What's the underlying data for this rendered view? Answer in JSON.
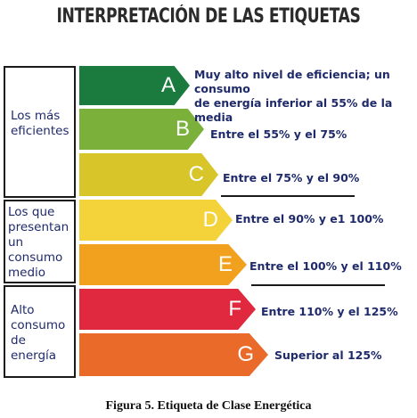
{
  "title": "INTERPRETACIÓN DE LAS ETIQUETAS",
  "groups": [
    {
      "label": "Los más\neficientes"
    },
    {
      "label": "Los que\npresentan\nun consumo\nmedio"
    },
    {
      "label": "Alto\nconsumo\nde energía"
    }
  ],
  "classes": [
    {
      "letter": "A",
      "color": "#1b7a3e",
      "description": "Muy alto nivel de eficiencia; un consumo\nde energía inferior al 55% de la media"
    },
    {
      "letter": "B",
      "color": "#7bb13a",
      "description": "Entre el 55% y el 75%"
    },
    {
      "letter": "C",
      "color": "#d8c52a",
      "description": "Entre el 75% y el 90%"
    },
    {
      "letter": "D",
      "color": "#f3d23a",
      "description": "Entre el 90% y e1 100%"
    },
    {
      "letter": "E",
      "color": "#f2a11e",
      "description": "Entre el 100% y el 110%"
    },
    {
      "letter": "F",
      "color": "#e0293f",
      "description": "Entre 110% y el 125%"
    },
    {
      "letter": "G",
      "color": "#ea6a2a",
      "description": "Superior al 125%"
    }
  ],
  "caption": "Figura 5. Etiqueta de Clase Energética"
}
